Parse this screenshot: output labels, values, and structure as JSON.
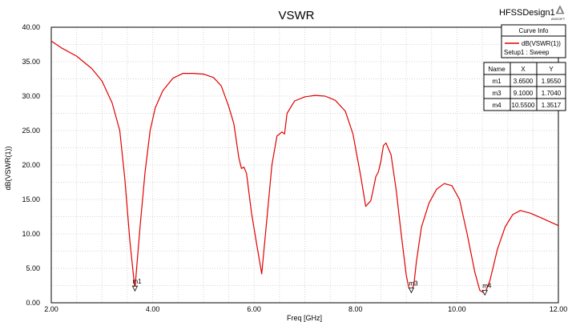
{
  "design_name": "HFSSDesign1",
  "logo_text": "ANSOFT",
  "legend": {
    "header": "Curve Info",
    "entry": "dB(VSWR(1))",
    "sub": "Setup1 : Sweep",
    "color": "#e00000"
  },
  "marker_table": {
    "headers": [
      "Name",
      "X",
      "Y"
    ],
    "rows": [
      [
        "m1",
        "3.6500",
        "1.9550"
      ],
      [
        "m3",
        "9.1000",
        "1.7040"
      ],
      [
        "m4",
        "10.5500",
        "1.3517"
      ]
    ]
  },
  "chart_data": {
    "type": "line",
    "title": "VSWR",
    "xlabel": "Freq [GHz]",
    "ylabel": "dB(VSWR(1))",
    "xlim": [
      2.0,
      12.0
    ],
    "ylim": [
      0.0,
      40.0
    ],
    "xticks": [
      2,
      4,
      6,
      8,
      10,
      12
    ],
    "xtick_labels": [
      "2.00",
      "4.00",
      "6.00",
      "8.00",
      "10.00",
      "12.00"
    ],
    "yticks": [
      0,
      5,
      10,
      15,
      20,
      25,
      30,
      35,
      40
    ],
    "ytick_labels": [
      "0.00",
      "5.00",
      "10.00",
      "15.00",
      "20.00",
      "25.00",
      "30.00",
      "35.00",
      "40.00"
    ],
    "grid": true,
    "series": [
      {
        "name": "dB(VSWR(1))",
        "color": "#e00000",
        "x": [
          2.0,
          2.2,
          2.5,
          2.8,
          3.0,
          3.2,
          3.35,
          3.45,
          3.55,
          3.65,
          3.75,
          3.85,
          3.95,
          4.05,
          4.2,
          4.4,
          4.6,
          4.8,
          5.0,
          5.2,
          5.35,
          5.5,
          5.6,
          5.7,
          5.75,
          5.8,
          5.85,
          5.95,
          6.05,
          6.15,
          6.25,
          6.35,
          6.45,
          6.55,
          6.6,
          6.65,
          6.8,
          7.0,
          7.2,
          7.4,
          7.6,
          7.8,
          7.95,
          8.1,
          8.2,
          8.3,
          8.35,
          8.4,
          8.45,
          8.5,
          8.55,
          8.6,
          8.7,
          8.8,
          8.9,
          9.0,
          9.05,
          9.1,
          9.15,
          9.2,
          9.3,
          9.45,
          9.6,
          9.75,
          9.9,
          10.05,
          10.2,
          10.35,
          10.45,
          10.55,
          10.65,
          10.8,
          10.95,
          11.1,
          11.25,
          11.45,
          11.7,
          12.0
        ],
        "y": [
          38.0,
          37.0,
          35.8,
          34.0,
          32.2,
          29.0,
          25.0,
          18.0,
          9.0,
          1.955,
          11.0,
          19.0,
          25.0,
          28.3,
          30.8,
          32.6,
          33.3,
          33.3,
          33.2,
          32.7,
          31.5,
          28.5,
          26.0,
          21.0,
          19.5,
          19.7,
          18.8,
          13.0,
          8.5,
          4.2,
          12.0,
          20.0,
          24.2,
          24.8,
          24.5,
          27.5,
          29.3,
          29.9,
          30.1,
          30.0,
          29.4,
          27.8,
          24.5,
          18.5,
          14.0,
          14.8,
          16.5,
          18.3,
          19.0,
          20.5,
          22.8,
          23.2,
          21.5,
          16.5,
          10.0,
          4.0,
          2.2,
          1.704,
          2.6,
          6.0,
          11.0,
          14.5,
          16.5,
          17.3,
          17.0,
          15.0,
          10.0,
          4.5,
          1.8,
          1.3517,
          3.2,
          7.8,
          11.0,
          12.8,
          13.4,
          13.0,
          12.2,
          11.2
        ]
      }
    ],
    "markers": [
      {
        "name": "m1",
        "x": 3.65,
        "y": 1.955
      },
      {
        "name": "m3",
        "x": 9.1,
        "y": 1.704
      },
      {
        "name": "m4",
        "x": 10.55,
        "y": 1.3517
      }
    ]
  }
}
